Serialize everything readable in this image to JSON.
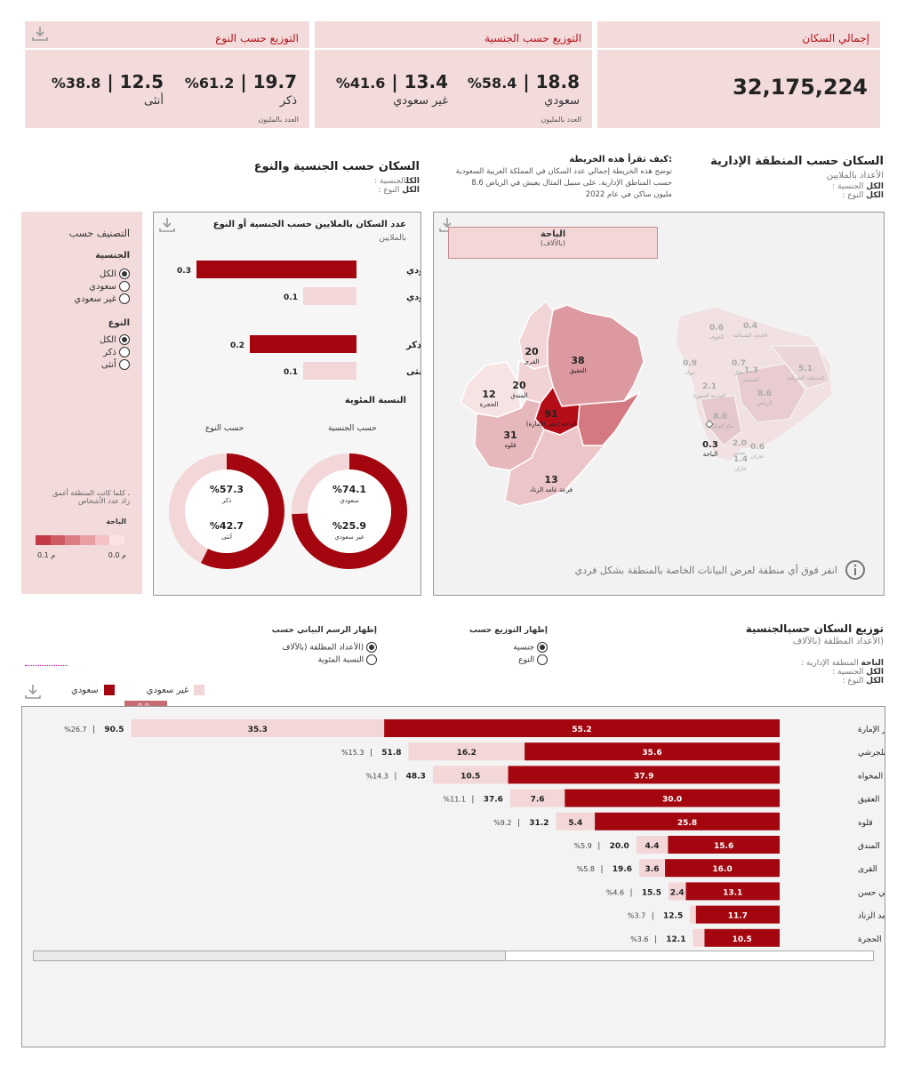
{
  "kpi": {
    "total_title": "إجمالي السكان",
    "total_value": "32,175,224",
    "nat_title": "التوزيع حسب الجنسية",
    "nat_saudi_value": "18.8",
    "nat_saudi_pct": "%58.4",
    "nat_saudi_label": "سعودي",
    "nat_non_value": "13.4",
    "nat_non_pct": "%41.6",
    "nat_non_label": "غير سعودي",
    "nat_note": "العدد بالمليون",
    "gender_title": "التوزيع حسب النوع",
    "gender_male_value": "19.7",
    "gender_male_pct": "%61.2",
    "gender_male_label": "ذكر",
    "gender_female_value": "12.5",
    "gender_female_pct": "%38.8",
    "gender_female_label": "أنثى",
    "gender_note": "العدد بالمليون"
  },
  "region_section": {
    "title": "السكان حسب المنطقة الإدارية",
    "subtitle": "الأعداد بالملايين",
    "filter1_key": "الكل",
    "filter1_label": "الجنسية :",
    "filter2_key": "الكل",
    "filter2_label": "النوع :"
  },
  "howto": {
    "title": ":كيف تقرأ هذه الخريطة",
    "line1": "توضح هذه الخريطة إجمالي عدد السكان في المملكة العربية السعودية",
    "line2": "حسب المناطق الإدارية. على سبيل المثال يعيش في الرياض 8.6",
    "line3": "مليون ساكن في عام 2022"
  },
  "natgender_section": {
    "title": "السكان حسب الجنسية والنوع",
    "filter1_key": "الكل",
    "filter1_label": "الجنسية :",
    "filter2_key": "الكل",
    "filter2_label": "النوع :"
  },
  "classify": {
    "title": "التصنيف حسب",
    "nat_head": "الجنسية",
    "nat_options": [
      "الكل",
      "سعودي",
      "غير سعودي"
    ],
    "gender_head": "النوع",
    "gender_options": [
      "الكل",
      "ذكر",
      "أنثى"
    ],
    "legend_note1": "، كلما كانت المنطقة أغمق",
    "legend_note2": "زاد عدد الأشخاص",
    "legend_region": "الباحة",
    "legend_min": "0.0 م",
    "legend_max": "0.1 م",
    "legend_colors": [
      "#fbe3e4",
      "#f3c2c5",
      "#e89ea3",
      "#dc7d84",
      "#cf5a63",
      "#c23a45"
    ]
  },
  "map": {
    "tooltip_title": "الباحة",
    "tooltip_sub": "(بالآلاف)",
    "info_text": "انقر فوق أي منطقة لعرض البيانات الخاصة بالمنطقة بشكل فردي",
    "gov_values": [
      "38",
      "20",
      "20",
      "12",
      "91",
      "31",
      "13"
    ],
    "gov_names": [
      "العقيق",
      "القرى",
      "المندق",
      "الحجرة",
      "الباحة (مقر الإمارة)",
      "قلوه",
      "فرعة غامد الزناد"
    ],
    "ksa_values": [
      "0.4",
      "0.6",
      "0.9",
      "0.7",
      "1.3",
      "5.1",
      "2.1",
      "8.6",
      "8.0",
      "0.3",
      "2.0",
      "0.6",
      "1.4"
    ],
    "ksa_names": [
      "الحدود الشمالية",
      "الجوف",
      "تبوك",
      "حائل",
      "القصيم",
      "المنطقة الشرقية",
      "المدينة المنورة",
      "الرياض",
      "مكة المكرمة",
      "الباحة",
      "عسير",
      "نجران",
      "جازان"
    ]
  },
  "small_chart": {
    "title": "عدد السكان بالملايين حسب الجنسية أو النوع",
    "subtitle": "بالملايين",
    "bars": [
      {
        "label": "سعودي",
        "value": "0.3",
        "v": 0.3,
        "dark": true
      },
      {
        "label": "غير سعودي",
        "value": "0.1",
        "v": 0.1,
        "dark": false
      },
      {
        "label": "ذكر",
        "value": "0.2",
        "v": 0.2,
        "dark": true
      },
      {
        "label": "أنثى",
        "value": "0.1",
        "v": 0.1,
        "dark": false
      }
    ],
    "pct_title": "النسبة المئوية",
    "donut_nat_title": "حسب الجنسية",
    "donut_gender_title": "حسب النوع",
    "donut_nat": {
      "a_pct": "%74.1",
      "a_label": "سعودي",
      "b_pct": "%25.9",
      "b_label": "غير سعودي",
      "a": 74.1
    },
    "donut_gender": {
      "a_pct": "%57.3",
      "a_label": "ذكر",
      "b_pct": "%42.7",
      "b_label": "أنثى",
      "a": 57.3
    }
  },
  "dist_section": {
    "title_a": "الجنسية",
    "title_b": "توزيع السكان حسب",
    "subtitle": "(الأعداد المطلقة (بالآلاف",
    "f1_key": "الباحة",
    "f1_label": "المنطقة الإدارية :",
    "f2_key": "الكل",
    "f2_label": "الجنسية :",
    "f3_key": "الكل",
    "f3_label": "النوع :",
    "show_dist_head": "إظهار التوزيع حسب",
    "show_dist_opts": [
      "جنسية",
      "النوع"
    ],
    "show_chart_head": "إظهار الرسم البياني حسب",
    "show_chart_opts": [
      "(الأعداد المطلقة (بالآلاف",
      "النسبة المئوية"
    ],
    "legend_saudi": "سعودي",
    "legend_non": "غير سعودي",
    "zero_label": "0.0م",
    "saudi_color": "#a3060f",
    "non_color": "#f3d6d7"
  },
  "chart_data": {
    "type": "bar",
    "title": "توزيع السكان حسب الجنسية",
    "ylabel": "(الأعداد المطلقة (بالآلاف",
    "categories": [
      "(الباحة (مقر الإمارة",
      "بلجرشي",
      "المخواه",
      "العقيق",
      "قلوه",
      "المندق",
      "القرى",
      "بني حسن",
      "فرعة غامد الزناد",
      "الحجرة"
    ],
    "series": [
      {
        "name": "سعودي",
        "values": [
          55.2,
          35.6,
          37.9,
          30.0,
          25.8,
          15.6,
          16.0,
          13.1,
          11.7,
          10.5
        ]
      },
      {
        "name": "غير سعودي",
        "values": [
          35.3,
          16.2,
          10.5,
          7.6,
          5.4,
          4.4,
          3.6,
          2.4,
          0.8,
          1.6
        ]
      }
    ],
    "totals": [
      "90.5",
      "51.8",
      "48.3",
      "37.6",
      "31.2",
      "20.0",
      "19.6",
      "15.5",
      "12.5",
      "12.1"
    ],
    "shares": [
      "%26.7",
      "%15.3",
      "%14.3",
      "%11.1",
      "%9.2",
      "%5.9",
      "%5.8",
      "%4.6",
      "%3.7",
      "%3.6"
    ],
    "saudi_labels": [
      "55.2",
      "35.6",
      "37.9",
      "30.0",
      "25.8",
      "15.6",
      "16.0",
      "13.1",
      "11.7",
      "10.5"
    ],
    "non_labels": [
      "35.3",
      "16.2",
      "10.5",
      "7.6",
      "5.4",
      "4.4",
      "3.6",
      "2.4",
      "",
      ""
    ]
  }
}
